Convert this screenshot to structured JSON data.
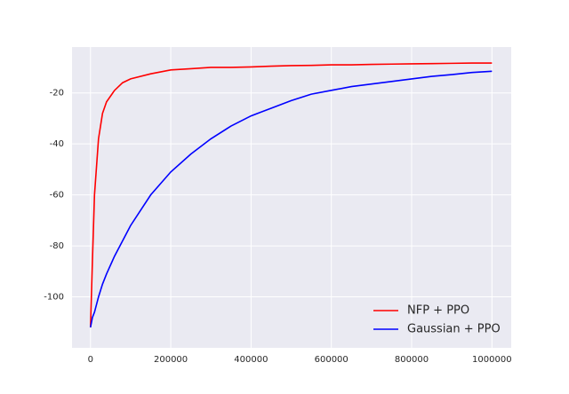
{
  "chart_data": {
    "type": "line",
    "x": [
      0,
      5000,
      10000,
      20000,
      30000,
      40000,
      60000,
      80000,
      100000,
      150000,
      200000,
      250000,
      300000,
      350000,
      400000,
      450000,
      500000,
      550000,
      600000,
      650000,
      700000,
      750000,
      800000,
      850000,
      900000,
      950000,
      1000000
    ],
    "series": [
      {
        "name": "NFP + PPO",
        "color": "#ff0000",
        "values": [
          -112,
          -85,
          -60,
          -38,
          -28,
          -23.5,
          -19,
          -16,
          -14.5,
          -12.5,
          -11,
          -10.5,
          -10,
          -10,
          -9.8,
          -9.5,
          -9.3,
          -9.2,
          -9,
          -9,
          -8.8,
          -8.7,
          -8.6,
          -8.5,
          -8.4,
          -8.3,
          -8.3
        ]
      },
      {
        "name": "Gaussian + PPO",
        "color": "#0000ff",
        "values": [
          -112,
          -108,
          -106,
          -100,
          -95,
          -91,
          -84,
          -78,
          -72,
          -60,
          -51,
          -44,
          -38,
          -33,
          -29,
          -26,
          -23,
          -20.5,
          -19,
          -17.5,
          -16.5,
          -15.5,
          -14.5,
          -13.5,
          -12.8,
          -12,
          -11.5
        ]
      }
    ],
    "xlim": [
      -46000,
      1048000
    ],
    "ylim": [
      -120,
      -2
    ],
    "xticks": [
      0,
      200000,
      400000,
      600000,
      800000,
      1000000
    ],
    "yticks": [
      -100,
      -80,
      -60,
      -40,
      -20
    ],
    "grid": true,
    "legend": "lower right"
  }
}
